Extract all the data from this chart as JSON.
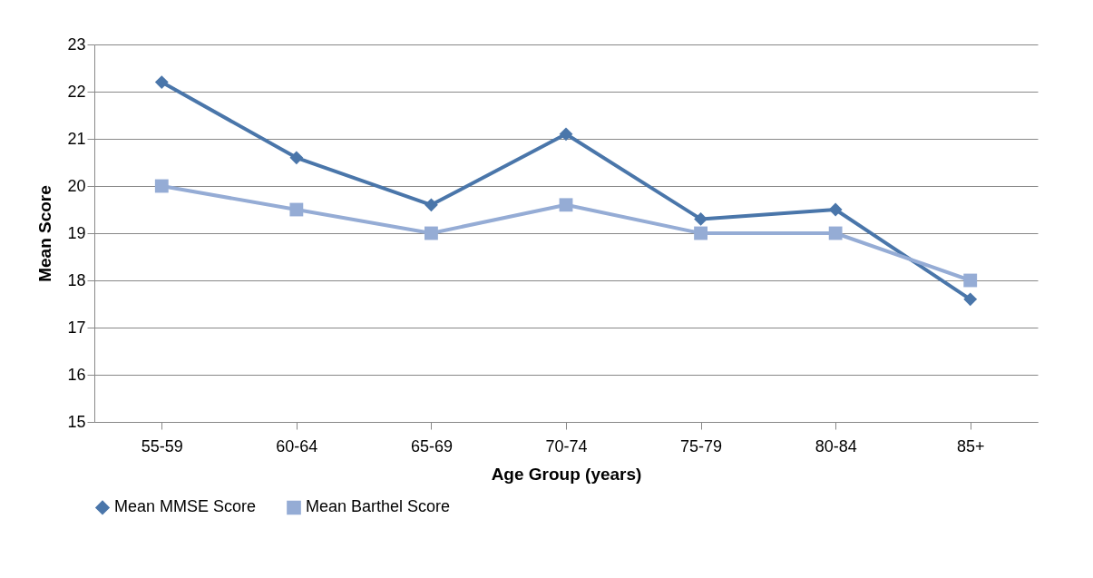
{
  "chart_data": {
    "type": "line",
    "xlabel": "Age Group (years)",
    "ylabel": "Mean Score",
    "categories": [
      "55-59",
      "60-64",
      "65-69",
      "70-74",
      "75-79",
      "80-84",
      "85+"
    ],
    "series": [
      {
        "name": "Mean MMSE Score",
        "color": "#4a76aa",
        "marker": "diamond",
        "values": [
          22.2,
          20.6,
          19.6,
          21.1,
          19.3,
          19.5,
          17.6
        ]
      },
      {
        "name": "Mean Barthel Score",
        "color": "#95acd5",
        "marker": "square",
        "values": [
          20,
          19.5,
          19,
          19.6,
          19,
          19,
          18
        ]
      }
    ],
    "ylim": [
      15,
      23
    ],
    "yticks": [
      15,
      16,
      17,
      18,
      19,
      20,
      21,
      22,
      23
    ],
    "grid": "y",
    "legend": "bottom"
  }
}
